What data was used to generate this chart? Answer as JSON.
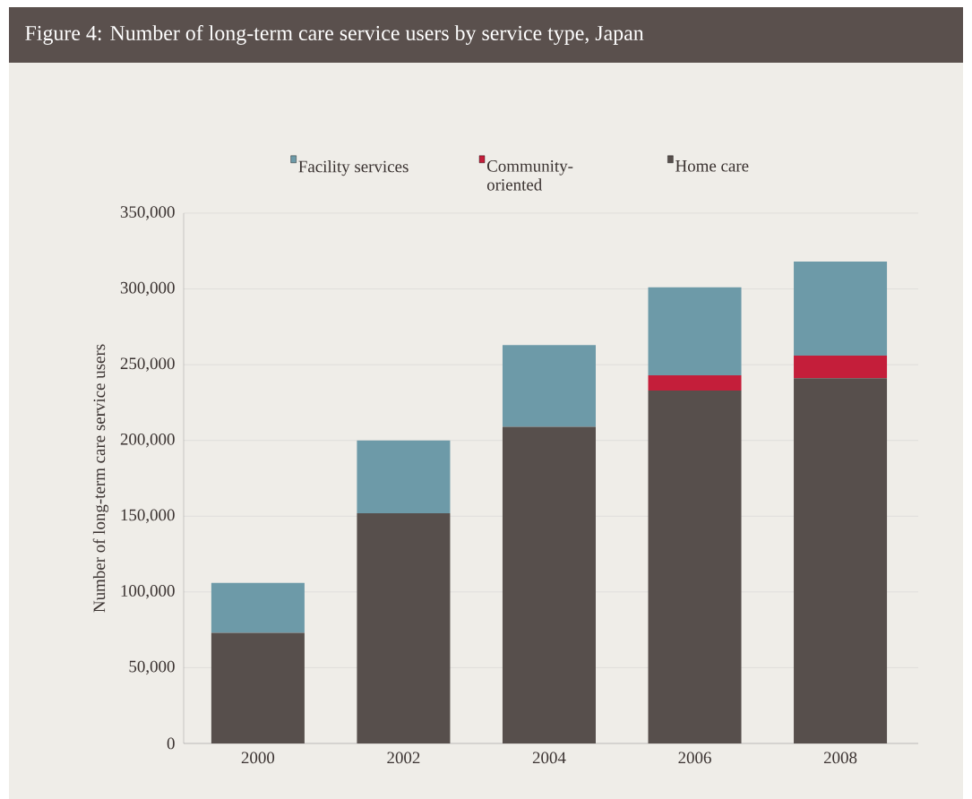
{
  "chart_data": {
    "type": "bar",
    "stacked": true,
    "title": "Figure 4: Number of long-term care service users by service type, Japan",
    "ylabel": "Number of long-term care service users",
    "categories": [
      "2000",
      "2002",
      "2004",
      "2006",
      "2008"
    ],
    "series": [
      {
        "name": "Home care",
        "color": "#574f4c",
        "values": [
          73000,
          152000,
          209000,
          233000,
          241000
        ]
      },
      {
        "name": "Community-oriented",
        "color": "#c41e3a",
        "values": [
          0,
          0,
          0,
          10000,
          15000
        ]
      },
      {
        "name": "Facility services",
        "color": "#6d9aa8",
        "values": [
          33000,
          48000,
          54000,
          58000,
          62000
        ]
      }
    ],
    "ylim": [
      0,
      350000
    ],
    "yticks": [
      {
        "value": 0,
        "label": "0"
      },
      {
        "value": 50000,
        "label": "50,000"
      },
      {
        "value": 100000,
        "label": "100,000"
      },
      {
        "value": 150000,
        "label": "150,000"
      },
      {
        "value": 200000,
        "label": "200,000"
      },
      {
        "value": 250000,
        "label": "250,000"
      },
      {
        "value": 300000,
        "label": "300,000"
      },
      {
        "value": 350000,
        "label": "350,000"
      }
    ],
    "grid": "y",
    "legend": "top"
  }
}
